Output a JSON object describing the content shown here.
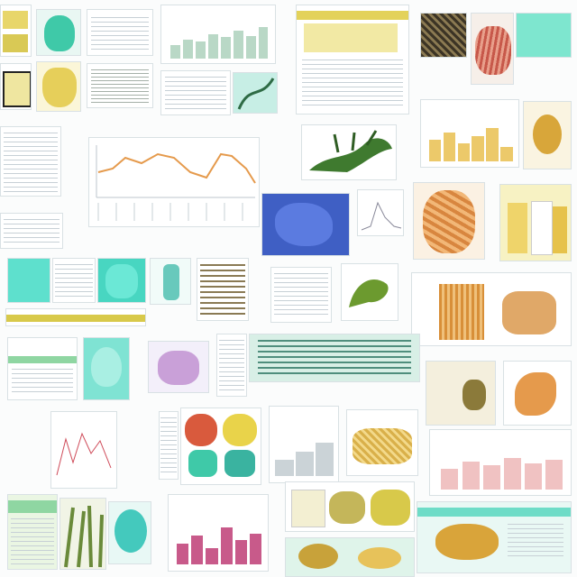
{
  "collage": {
    "description_style": "mosaic of scientific figure thumbnails",
    "colors": {
      "teal": "#57e0c9",
      "yellow": "#d8c94a",
      "orange": "#e59a4c",
      "blue": "#3f5fc4",
      "green": "#4e8a3a",
      "pink": "#c85a8a",
      "gridline": "#c7d0d6"
    }
  }
}
